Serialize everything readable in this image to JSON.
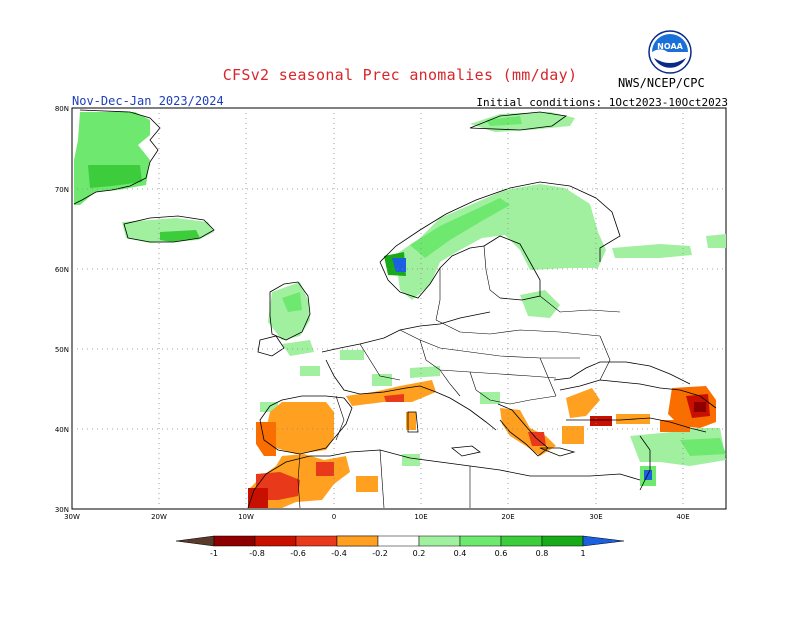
{
  "header": {
    "title": "CFSv2 seasonal Prec anomalies (mm/day)",
    "period": "Nov-Dec-Jan 2023/2024",
    "initial_conditions": "Initial conditions: 1Oct2023-10Oct2023",
    "agency": "NWS/NCEP/CPC",
    "logo_text": "NOAA"
  },
  "map": {
    "lon_range": [
      -30,
      45
    ],
    "lat_range": [
      30,
      80
    ],
    "lat_labels": [
      "80N",
      "70N",
      "60N",
      "50N",
      "40N",
      "30N"
    ],
    "lon_labels": [
      "30W",
      "20W",
      "10W",
      "0",
      "10E",
      "20E",
      "30E",
      "40E"
    ],
    "grid": "dotted"
  },
  "legend": {
    "labels": [
      "-1",
      "-0.8",
      "-0.6",
      "-0.4",
      "-0.2",
      "0.2",
      "0.4",
      "0.6",
      "0.8",
      "1"
    ],
    "colors": {
      "below_min": "#5a3a2a",
      "neg_1": "#8e0000",
      "neg_08": "#c81000",
      "neg_06": "#e83a1a",
      "neg_04": "#fa6e00",
      "neg_02": "#ffa020",
      "pos_02": "#a0f0a0",
      "pos_04": "#6ee86e",
      "pos_06": "#3ccc3c",
      "pos_08": "#18aa18",
      "pos_1": "#0a8a0a",
      "above_max": "#1a60e0"
    }
  }
}
